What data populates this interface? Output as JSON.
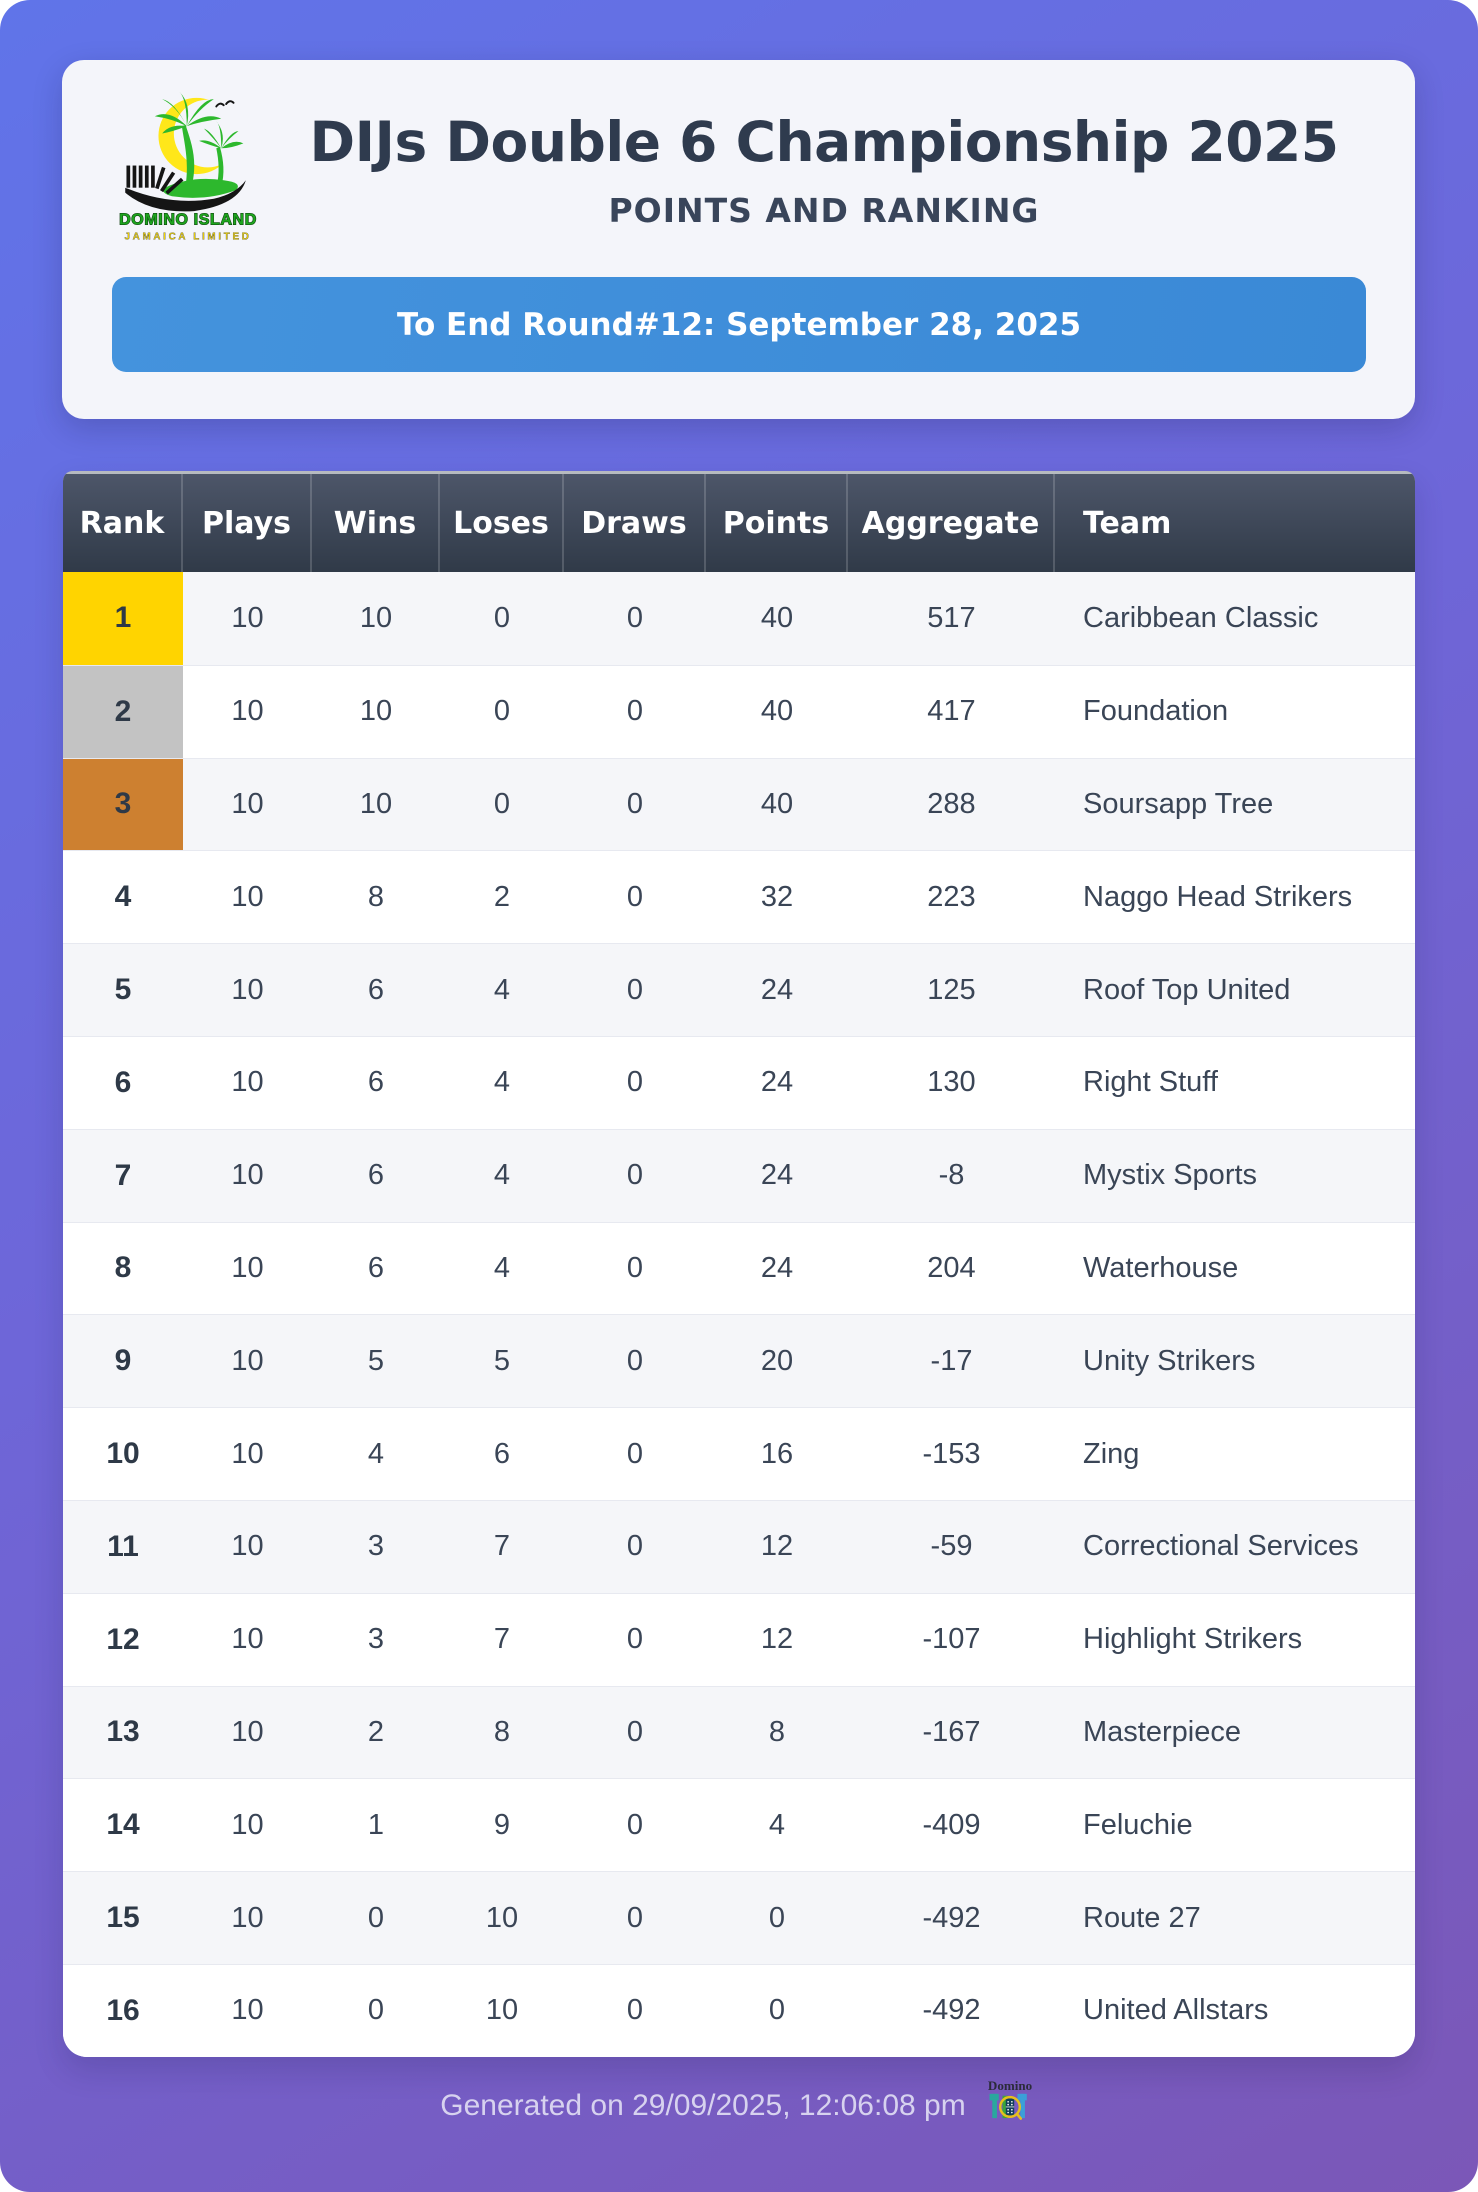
{
  "header": {
    "logo_line1": "DOMINO ISLAND",
    "logo_line2": "JAMAICA LIMITED",
    "title": "DIJs Double 6 Championship 2025",
    "subtitle": "POINTS AND RANKING",
    "banner": "To End Round#12: September 28, 2025"
  },
  "footer": {
    "generated": "Generated on 29/09/2025, 12:06:08 pm",
    "logo_word": "Domino"
  },
  "colors": {
    "background_top": "#6074e9",
    "background_bottom": "#7b57b7",
    "card_bg": "#f4f5fa",
    "banner_blue": "#3d8dd9",
    "table_header_top": "#4d5669",
    "table_header_bottom": "#303a48",
    "row_alt": "#f5f6f9",
    "row_white": "#ffffff",
    "text_dark": "#2f3b4e",
    "footer_text": "#d7d2ef",
    "logo_green": "#2db82d",
    "logo_yellow": "#ffe71a",
    "medals": [
      "#ffd400",
      "#c3c3c3",
      "#cd8030"
    ]
  },
  "chart_data": {
    "type": "table",
    "title": "DIJs Double 6 Championship 2025",
    "subtitle": "POINTS AND RANKING",
    "annotation": "To End Round#12: September 28, 2025",
    "columns": [
      "Rank",
      "Plays",
      "Wins",
      "Loses",
      "Draws",
      "Points",
      "Aggregate",
      "Team"
    ],
    "rows": [
      [
        1,
        10,
        10,
        0,
        0,
        40,
        517,
        "Caribbean Classic"
      ],
      [
        2,
        10,
        10,
        0,
        0,
        40,
        417,
        "Foundation"
      ],
      [
        3,
        10,
        10,
        0,
        0,
        40,
        288,
        "Soursapp Tree"
      ],
      [
        4,
        10,
        8,
        2,
        0,
        32,
        223,
        "Naggo Head Strikers"
      ],
      [
        5,
        10,
        6,
        4,
        0,
        24,
        125,
        "Roof Top United"
      ],
      [
        6,
        10,
        6,
        4,
        0,
        24,
        130,
        "Right Stuff"
      ],
      [
        7,
        10,
        6,
        4,
        0,
        24,
        -8,
        "Mystix Sports"
      ],
      [
        8,
        10,
        6,
        4,
        0,
        24,
        204,
        "Waterhouse"
      ],
      [
        9,
        10,
        5,
        5,
        0,
        20,
        -17,
        "Unity Strikers"
      ],
      [
        10,
        10,
        4,
        6,
        0,
        16,
        -153,
        "Zing"
      ],
      [
        11,
        10,
        3,
        7,
        0,
        12,
        -59,
        "Correctional Services"
      ],
      [
        12,
        10,
        3,
        7,
        0,
        12,
        -107,
        "Highlight Strikers"
      ],
      [
        13,
        10,
        2,
        8,
        0,
        8,
        -167,
        "Masterpiece"
      ],
      [
        14,
        10,
        1,
        9,
        0,
        4,
        -409,
        "Feluchie"
      ],
      [
        15,
        10,
        0,
        10,
        0,
        0,
        -492,
        "Route 27"
      ],
      [
        16,
        10,
        0,
        10,
        0,
        0,
        -492,
        "United Allstars"
      ]
    ]
  }
}
